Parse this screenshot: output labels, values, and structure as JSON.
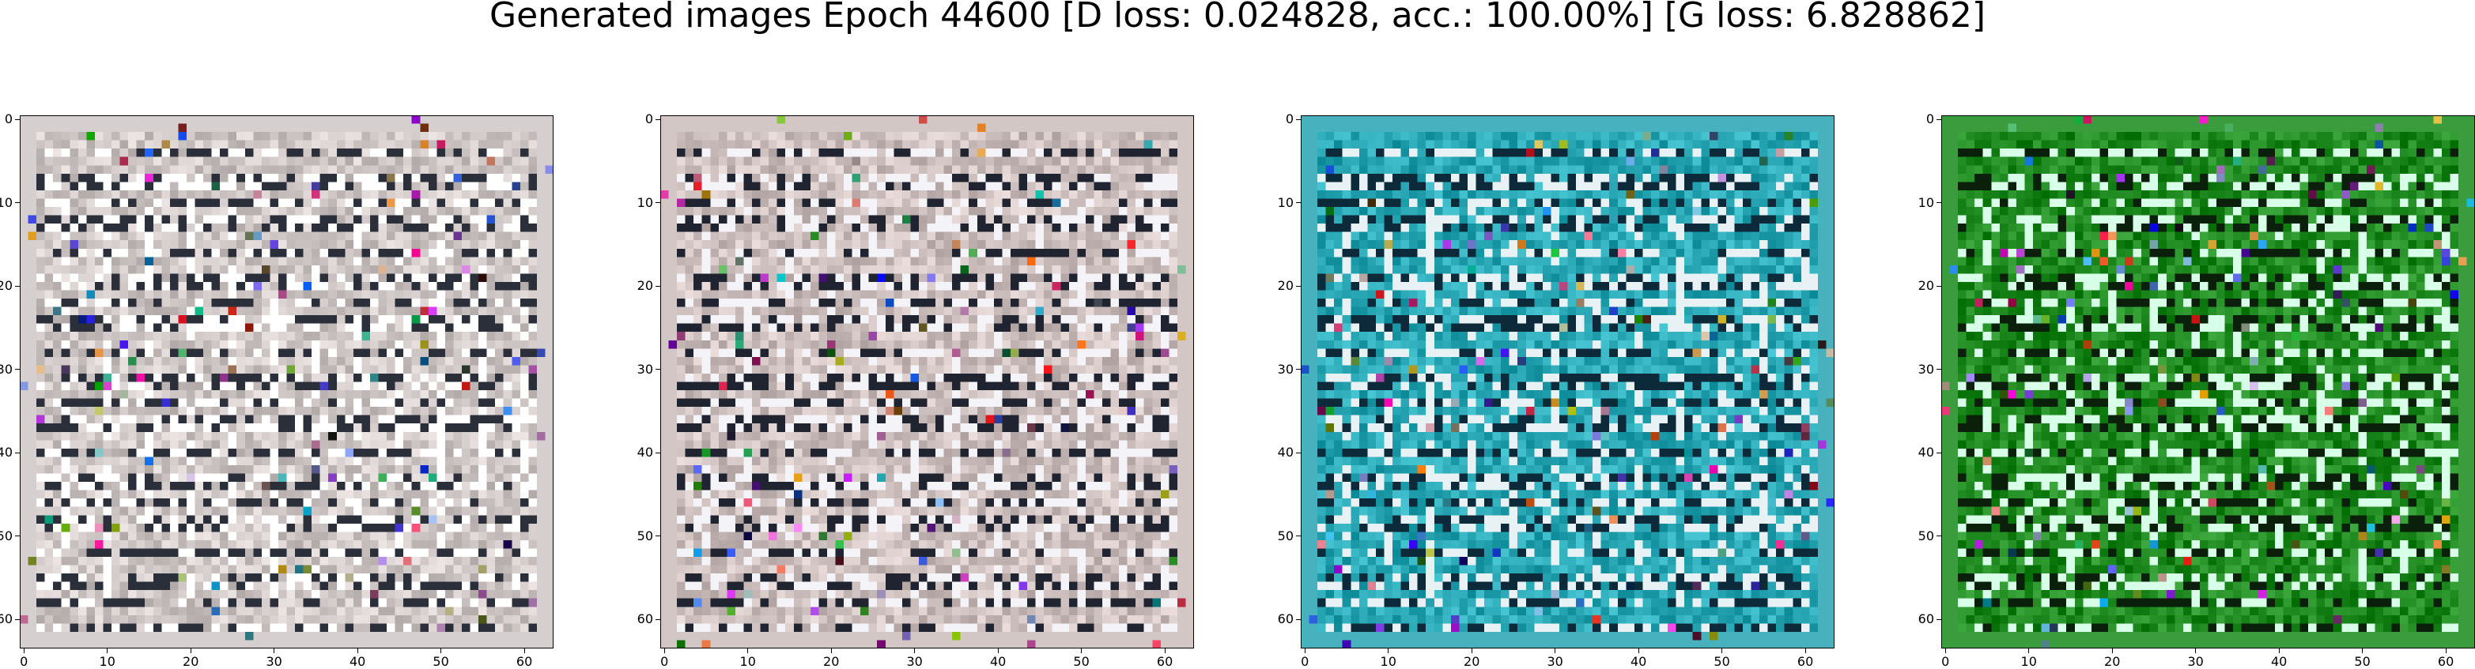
{
  "figure": {
    "title": "Generated images Epoch 44600 [D loss: 0.024828, acc.: 100.00%] [G loss: 6.828862]"
  },
  "axes_ticks": {
    "x": [
      "0",
      "10",
      "20",
      "30",
      "40",
      "50",
      "60"
    ],
    "y": [
      "0",
      "10",
      "20",
      "30",
      "40",
      "50",
      "60"
    ],
    "values": [
      0,
      10,
      20,
      30,
      40,
      50,
      60
    ],
    "image_size": 64
  },
  "panels": [
    {
      "id": "panel-1",
      "tint": "gray-pink",
      "base_color": "#cfc6c6",
      "accent": "#ffffff",
      "dark": "#2a2f3a"
    },
    {
      "id": "panel-2",
      "tint": "gray-pink",
      "base_color": "#cdbfbd",
      "accent": "#f4f4f8",
      "dark": "#1f2430"
    },
    {
      "id": "panel-3",
      "tint": "teal",
      "base_color": "#2aa7b4",
      "accent": "#e8f2f4",
      "dark": "#0d2a3a"
    },
    {
      "id": "panel-4",
      "tint": "green",
      "base_color": "#1f8a1f",
      "accent": "#d8ffe8",
      "dark": "#0a200a"
    }
  ]
}
